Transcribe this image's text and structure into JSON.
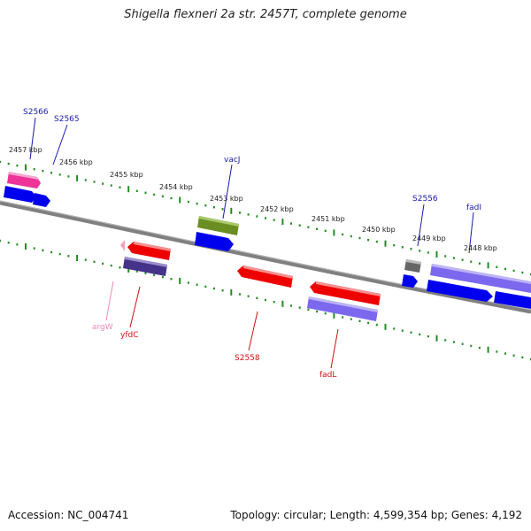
{
  "title": "Shigella flexneri 2a str. 2457T, complete genome",
  "footer": {
    "accession": "Accession: NC_004741",
    "topology": "Topology: circular; Length: 4,599,354 bp; Genes: 4,192"
  },
  "colors": {
    "backbone": "#808080",
    "tick": "#228b22",
    "label_forward": "#1a1aaa",
    "label_reverse": "#cc1111",
    "label_rna": "#ee88bb",
    "blue": "#0000ee",
    "pink": "#ee3399",
    "olive": "#6b8e23",
    "red": "#ee0000",
    "slate": "#443388",
    "lavender": "#7b68ee",
    "gray": "#666666",
    "lightpink": "#f4a0c0"
  },
  "kbp_labels": [
    "2457 kbp",
    "2456 kbp",
    "2455 kbp",
    "2454 kbp",
    "2453 kbp",
    "2452 kbp",
    "2451 kbp",
    "2450 kbp",
    "2449 kbp",
    "2448 kbp"
  ],
  "gene_labels": {
    "S2566": "S2566",
    "S2565": "S2565",
    "vacJ": "vacJ",
    "S2556": "S2556",
    "fadI": "fadI",
    "argW": "argW",
    "yfdC": "yfdC",
    "S2558": "S2558",
    "fadL": "fadL"
  }
}
